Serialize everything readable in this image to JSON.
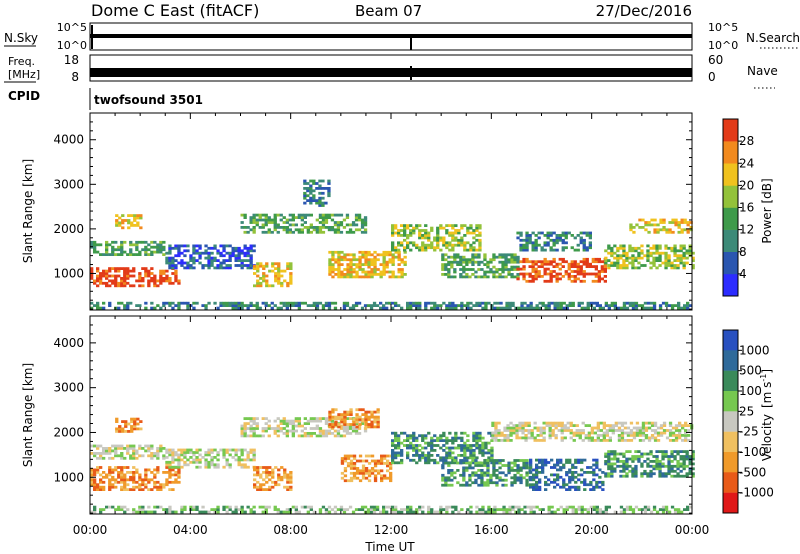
{
  "header": {
    "title": "Dome C East (fitACF)",
    "beam": "Beam 07",
    "date": "27/Dec/2016"
  },
  "top_strips": {
    "nsky_label": "N.Sky",
    "nsky_ticks": [
      "10^5",
      "10^0"
    ],
    "nsearch_label": "N.Search",
    "nsearch_ticks": [
      "10^5",
      "10^0"
    ],
    "freq_label_line1": "Freq.",
    "freq_label_line2": "[MHz]",
    "freq_ticks": [
      "18",
      "8"
    ],
    "nave_label": "Nave",
    "nave_ticks": [
      "60",
      "0"
    ],
    "cpid_label": "CPID",
    "cpid_value": "twofsound 3501"
  },
  "chart_data": [
    {
      "type": "heatmap",
      "name": "power",
      "ylabel": "Slant Range [km]",
      "xlabel": "",
      "yticks": [
        1000,
        2000,
        3000,
        4000
      ],
      "ylim": [
        180,
        4600
      ],
      "colorbar": {
        "label": "Power [dB]",
        "ticks": [
          "4",
          "8",
          "12",
          "16",
          "20",
          "24",
          "28"
        ],
        "colors": [
          "#2c2cff",
          "#2a56b0",
          "#3c8a78",
          "#3e9a4a",
          "#93c23a",
          "#f0c21e",
          "#f28a1e",
          "#e23a18"
        ]
      },
      "bands": [
        {
          "t0": 0.0,
          "t1": 3.5,
          "r0": 700,
          "r1": 1100,
          "level": 7
        },
        {
          "t0": 0.0,
          "t1": 3.0,
          "r0": 1400,
          "r1": 1700,
          "level": 3
        },
        {
          "t0": 1.0,
          "t1": 2.0,
          "r0": 2000,
          "r1": 2300,
          "level": 5
        },
        {
          "t0": 3.0,
          "t1": 6.5,
          "r0": 1100,
          "r1": 1600,
          "level": 1
        },
        {
          "t0": 6.5,
          "t1": 8.0,
          "r0": 700,
          "r1": 1200,
          "level": 5
        },
        {
          "t0": 6.0,
          "t1": 11.0,
          "r0": 1900,
          "r1": 2300,
          "level": 3
        },
        {
          "t0": 8.5,
          "t1": 9.5,
          "r0": 2500,
          "r1": 3100,
          "level": 2
        },
        {
          "t0": 9.5,
          "t1": 12.5,
          "r0": 900,
          "r1": 1500,
          "level": 5
        },
        {
          "t0": 12.0,
          "t1": 15.5,
          "r0": 1500,
          "r1": 2100,
          "level": 4
        },
        {
          "t0": 14.0,
          "t1": 17.0,
          "r0": 900,
          "r1": 1400,
          "level": 3
        },
        {
          "t0": 17.0,
          "t1": 20.5,
          "r0": 800,
          "r1": 1300,
          "level": 7
        },
        {
          "t0": 17.0,
          "t1": 20.0,
          "r0": 1500,
          "r1": 1900,
          "level": 2
        },
        {
          "t0": 20.5,
          "t1": 24.0,
          "r0": 1100,
          "r1": 1600,
          "level": 4
        },
        {
          "t0": 21.5,
          "t1": 24.0,
          "r0": 1900,
          "r1": 2200,
          "level": 5
        },
        {
          "t0": 0.0,
          "t1": 24.0,
          "r0": 200,
          "r1": 330,
          "level": 2
        }
      ]
    },
    {
      "type": "heatmap",
      "name": "velocity",
      "ylabel": "Slant Range [km]",
      "xlabel": "Time UT",
      "xticks": [
        "00:00",
        "04:00",
        "08:00",
        "12:00",
        "16:00",
        "20:00",
        "00:00"
      ],
      "yticks": [
        1000,
        2000,
        3000,
        4000
      ],
      "ylim": [
        180,
        4600
      ],
      "colorbar": {
        "label": "Velocity",
        "unit_prefix": "[m s",
        "unit_exp": "-1",
        "unit_suffix": "]",
        "ticks": [
          "1000",
          "500",
          "100",
          "25",
          "-25",
          "-100",
          "-500",
          "-1000"
        ],
        "colors": [
          "#2850c0",
          "#2f6a9a",
          "#3a8a5a",
          "#76c850",
          "#c8c8c0",
          "#f0c060",
          "#f09a2a",
          "#e85a18",
          "#e01818"
        ]
      },
      "bands": [
        {
          "t0": 0.0,
          "t1": 3.5,
          "r0": 700,
          "r1": 1200,
          "level": 6
        },
        {
          "t0": 0.0,
          "t1": 3.0,
          "r0": 1400,
          "r1": 1700,
          "level": 4
        },
        {
          "t0": 1.0,
          "t1": 2.0,
          "r0": 2000,
          "r1": 2300,
          "level": 6
        },
        {
          "t0": 3.0,
          "t1": 6.5,
          "r0": 1200,
          "r1": 1600,
          "level": 4
        },
        {
          "t0": 6.5,
          "t1": 8.0,
          "r0": 700,
          "r1": 1200,
          "level": 6
        },
        {
          "t0": 6.0,
          "t1": 11.0,
          "r0": 1900,
          "r1": 2300,
          "level": 4
        },
        {
          "t0": 9.5,
          "t1": 11.5,
          "r0": 2100,
          "r1": 2500,
          "level": 6
        },
        {
          "t0": 10.0,
          "t1": 12.0,
          "r0": 900,
          "r1": 1500,
          "level": 6
        },
        {
          "t0": 12.0,
          "t1": 16.0,
          "r0": 1300,
          "r1": 2000,
          "level": 2
        },
        {
          "t0": 14.0,
          "t1": 17.5,
          "r0": 800,
          "r1": 1400,
          "level": 2
        },
        {
          "t0": 17.5,
          "t1": 20.5,
          "r0": 700,
          "r1": 1400,
          "level": 1
        },
        {
          "t0": 20.5,
          "t1": 24.0,
          "r0": 1000,
          "r1": 1600,
          "level": 2
        },
        {
          "t0": 16.0,
          "t1": 24.0,
          "r0": 1800,
          "r1": 2200,
          "level": 4
        },
        {
          "t0": 0.0,
          "t1": 24.0,
          "r0": 200,
          "r1": 330,
          "level": 3
        }
      ]
    }
  ]
}
